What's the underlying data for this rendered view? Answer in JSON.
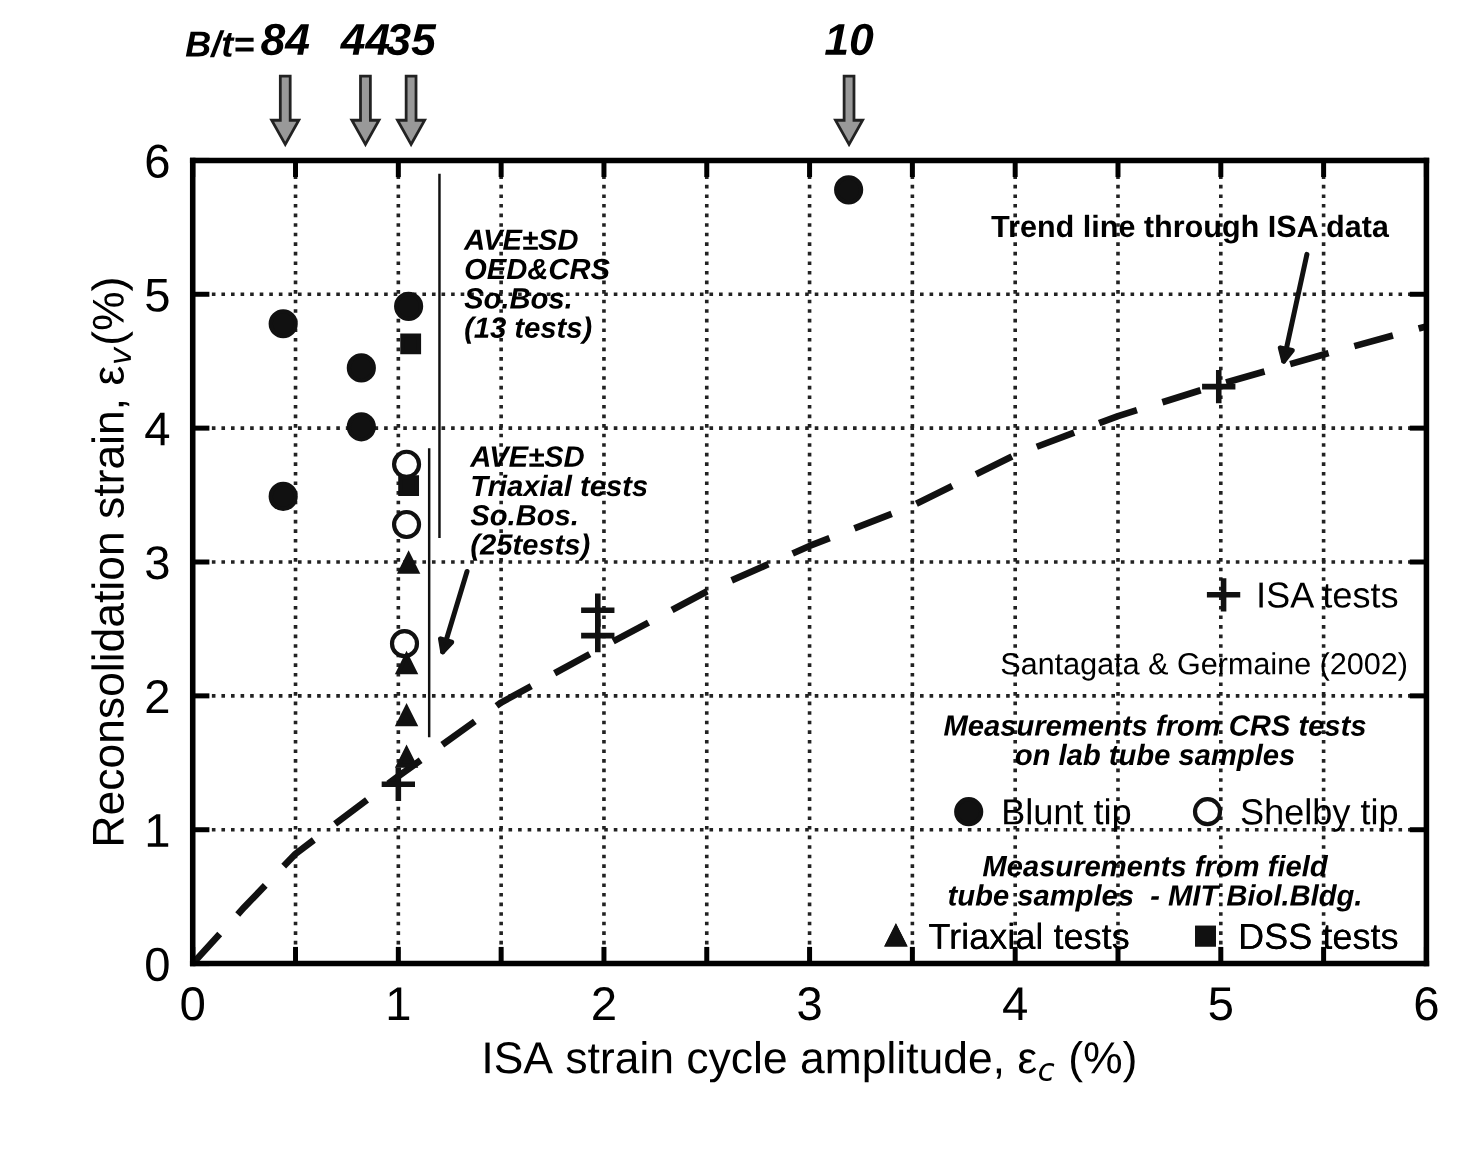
{
  "chart_data": {
    "type": "scatter",
    "xlabel": "ISA strain cycle amplitude, ε$_{c}$ (%)",
    "ylabel": "Reconsolidation strain, ε$_{v}$(%)",
    "xlim": [
      0,
      6
    ],
    "ylim": [
      0,
      6
    ],
    "xticks": [
      0,
      {
        "value": 0.5,
        "label": null
      },
      1,
      {
        "value": 1.5,
        "label": null
      },
      2,
      {
        "value": 2.5,
        "label": null
      },
      3,
      {
        "value": 3.5,
        "label": null
      },
      4,
      {
        "value": 4.5,
        "label": null
      },
      5,
      {
        "value": 5.5,
        "label": null
      },
      6
    ],
    "yticks": [
      0,
      1,
      2,
      3,
      4,
      5,
      6
    ],
    "grid": true,
    "legend": "bottom right",
    "series": [
      {
        "name": "ISA tests",
        "marker": "cross",
        "color": "#111111",
        "x": [
          1.0,
          1.97,
          1.97,
          4.99
        ],
        "values": [
          1.34,
          2.64,
          2.45,
          4.31
        ]
      },
      {
        "name": "Blunt tip",
        "marker": "circle",
        "color": "#111111",
        "x": [
          0.44,
          0.44,
          0.82,
          0.82,
          1.05,
          3.19
        ],
        "values": [
          4.78,
          3.49,
          4.45,
          4.01,
          4.91,
          5.78
        ]
      },
      {
        "name": "Shelby tip",
        "marker": "circle",
        "color": "#ffffff",
        "x": [
          1.04,
          1.04,
          1.03
        ],
        "values": [
          3.73,
          3.28,
          2.39
        ]
      },
      {
        "name": "Triaxial tests",
        "marker": "triangle",
        "color": "#111111",
        "x": [
          1.05,
          1.04,
          1.04,
          1.04
        ],
        "values": [
          2.99,
          2.24,
          1.85,
          1.54
        ]
      },
      {
        "name": "DSS tests",
        "marker": "square",
        "color": "#111111",
        "x": [
          1.06,
          1.05
        ],
        "values": [
          4.63,
          3.57
        ]
      },
      {
        "type": "bar",
        "color": "#111111",
        "x": [
          1.2,
          1.15
        ],
        "base": [
          3.18,
          1.69
        ],
        "values": [
          2.72,
          2.16
        ]
      },
      {
        "type": "line",
        "line_style": "dashed",
        "marker": "none",
        "color": "#111111",
        "x": [
          0,
          0.25,
          0.5,
          1,
          1.5,
          2,
          2.5,
          3,
          3.5,
          4,
          4.5,
          5,
          5.5,
          6
        ],
        "values": [
          0,
          0.42,
          0.82,
          1.4,
          1.95,
          2.37,
          2.78,
          3.12,
          3.42,
          3.8,
          4.09,
          4.33,
          4.55,
          4.76
        ]
      }
    ],
    "annotations": [
      "B/t=",
      "84",
      "44",
      "35",
      "10",
      "AVE±SD\nOED&CRS\nSo.Bos.\n(13 tests)",
      "AVE±SD\nTriaxial tests\nSo.Bos.\n(25tests)",
      {
        "text": "Trend line through ISA data",
        "x": 5.3,
        "y": 4.46
      },
      "Santagata & Germaine (2002)",
      "Measurements from CRS tests\non lab tube samples",
      "Measurements from field\ntube samples  - MIT Biol.Bldg."
    ]
  }
}
